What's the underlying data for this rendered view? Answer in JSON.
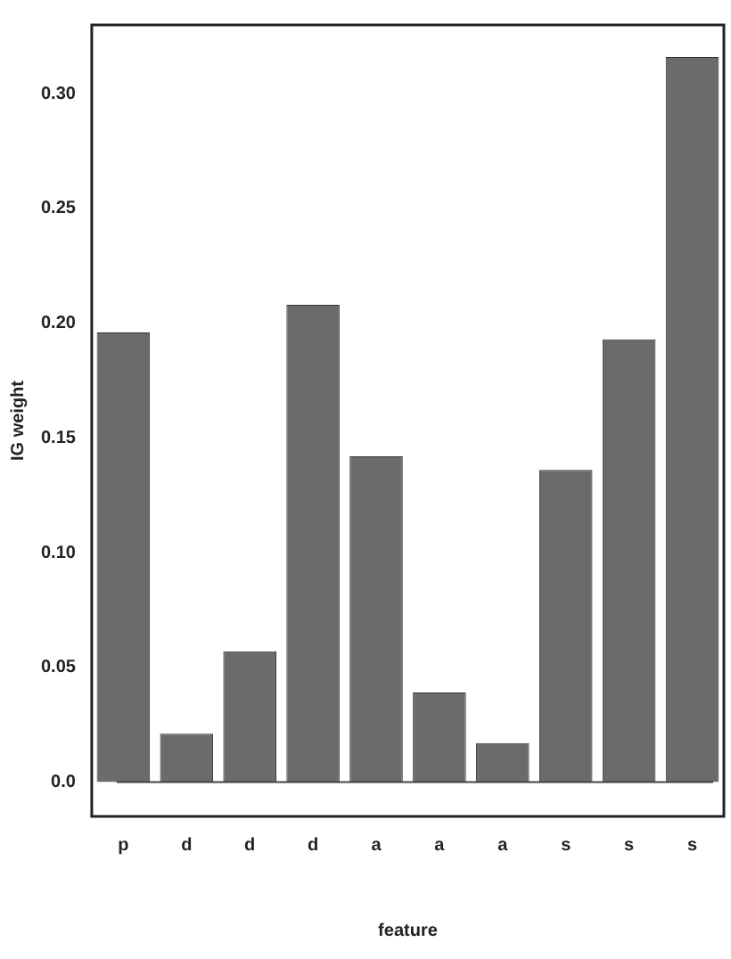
{
  "chart_data": {
    "type": "bar",
    "xlabel": "feature",
    "ylabel": "IG weight",
    "categories": [
      "p",
      "d",
      "d",
      "d",
      "a",
      "a",
      "a",
      "s",
      "s",
      "s"
    ],
    "values": [
      0.196,
      0.021,
      0.057,
      0.208,
      0.142,
      0.039,
      0.017,
      0.136,
      0.193,
      0.316
    ],
    "color": "#6b6b6b",
    "ylim": [
      -0.015,
      0.33
    ],
    "yticks": [
      {
        "value": 0,
        "label": "0.0"
      },
      0.05,
      {
        "value": 0.1,
        "label": "0.10"
      },
      0.15,
      {
        "value": 0.2,
        "label": "0.20"
      },
      0.25,
      {
        "value": 0.3,
        "label": "0.30"
      }
    ],
    "ref_lines": [
      {
        "axis": "y",
        "value": 0,
        "color": "#444444"
      }
    ],
    "grid": false,
    "legend": false
  }
}
